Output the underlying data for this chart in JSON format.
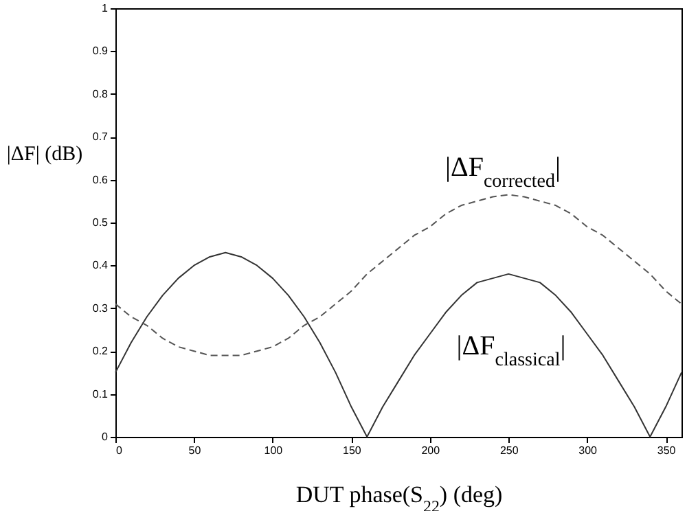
{
  "chart_data": {
    "type": "line",
    "xlabel": "DUT phase(S$_{22}$) (deg)",
    "ylabel": "|ΔF| (dB)",
    "x": [
      0,
      10,
      20,
      30,
      40,
      50,
      60,
      70,
      80,
      90,
      100,
      110,
      120,
      130,
      140,
      150,
      160,
      170,
      180,
      190,
      200,
      210,
      220,
      230,
      240,
      250,
      260,
      270,
      280,
      290,
      300,
      310,
      320,
      330,
      340,
      350,
      360
    ],
    "series": [
      {
        "color": "#333333",
        "line_style": "solid",
        "values": [
          0.15,
          0.22,
          0.28,
          0.33,
          0.37,
          0.4,
          0.42,
          0.43,
          0.42,
          0.4,
          0.37,
          0.33,
          0.28,
          0.22,
          0.15,
          0.07,
          0,
          0.07,
          0.13,
          0.19,
          0.24,
          0.29,
          0.33,
          0.36,
          0.37,
          0.38,
          0.37,
          0.36,
          0.33,
          0.29,
          0.24,
          0.19,
          0.13,
          0.07,
          0,
          0.07,
          0.15
        ]
      },
      {
        "color": "#555555",
        "line_style": "dashed",
        "values": [
          0.31,
          0.28,
          0.26,
          0.23,
          0.21,
          0.2,
          0.19,
          0.19,
          0.19,
          0.2,
          0.21,
          0.23,
          0.26,
          0.28,
          0.31,
          0.34,
          0.38,
          0.41,
          0.44,
          0.47,
          0.49,
          0.52,
          0.54,
          0.55,
          0.56,
          0.565,
          0.56,
          0.55,
          0.54,
          0.52,
          0.49,
          0.47,
          0.44,
          0.41,
          0.38,
          0.34,
          0.31
        ]
      }
    ],
    "annotations": [
      "|ΔF$_{corrected}$|",
      "|ΔF$_{classical}$|"
    ],
    "xlim": [
      0,
      360
    ],
    "xticks": [
      0,
      50,
      100,
      150,
      200,
      250,
      300,
      350
    ],
    "ylim": [
      0,
      1
    ],
    "yticks": [
      0,
      0.1,
      0.2,
      0.3,
      0.4,
      0.5,
      0.6,
      0.7,
      0.8,
      0.9,
      1
    ],
    "grid": false,
    "marker": "none"
  }
}
